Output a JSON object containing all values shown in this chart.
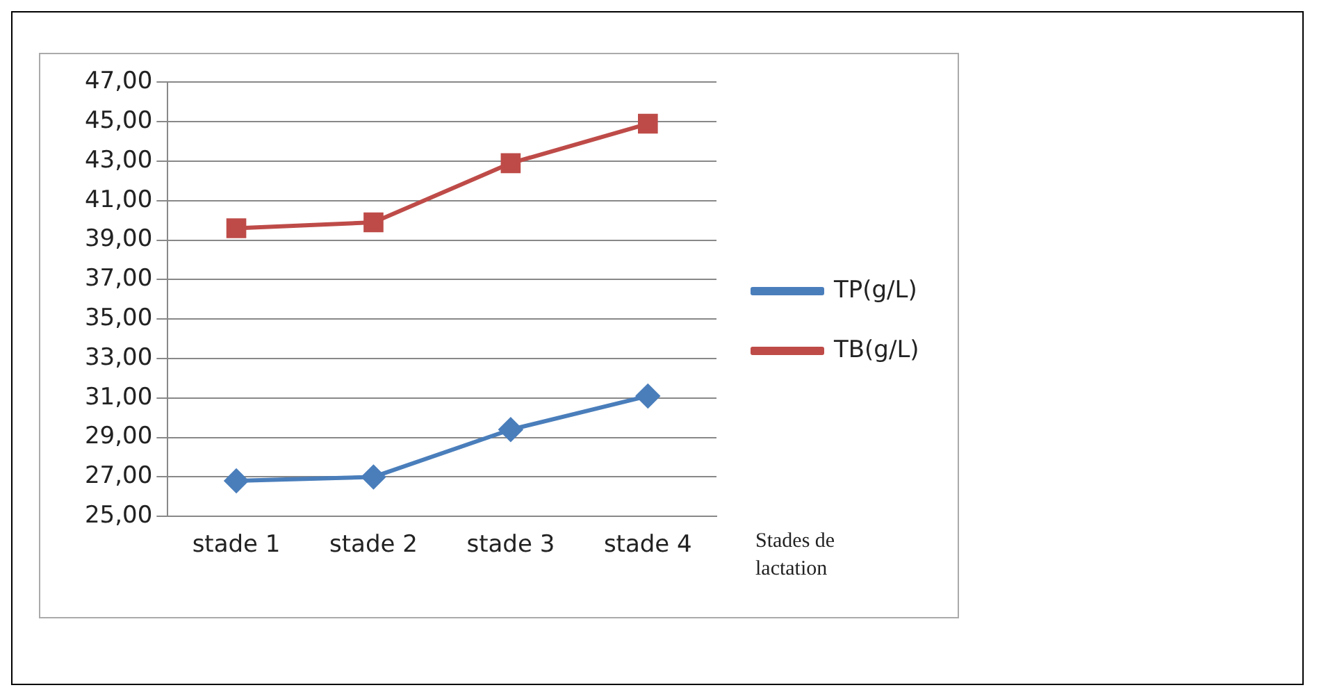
{
  "chart_data": {
    "type": "line",
    "categories": [
      "stade 1",
      "stade 2",
      "stade 3",
      "stade 4"
    ],
    "series": [
      {
        "name": "TP(g/L)",
        "color": "#4a7ebb",
        "values": [
          26.8,
          27.0,
          29.4,
          31.1
        ],
        "marker": "diamond"
      },
      {
        "name": "TB(g/L)",
        "color": "#be4b48",
        "values": [
          39.6,
          39.9,
          42.9,
          44.9
        ],
        "marker": "square"
      }
    ],
    "xlabel": "Stades de lactation",
    "ylim": [
      25,
      47
    ],
    "yticks": [
      {
        "value": 25,
        "label": "25,00"
      },
      {
        "value": 27,
        "label": "27,00"
      },
      {
        "value": 29,
        "label": "29,00"
      },
      {
        "value": 31,
        "label": "31,00"
      },
      {
        "value": 33,
        "label": "33,00"
      },
      {
        "value": 35,
        "label": "35,00"
      },
      {
        "value": 37,
        "label": "37,00"
      },
      {
        "value": 39,
        "label": "39,00"
      },
      {
        "value": 41,
        "label": "41,00"
      },
      {
        "value": 43,
        "label": "43,00"
      },
      {
        "value": 45,
        "label": "45,00"
      },
      {
        "value": 47,
        "label": "47,00"
      }
    ],
    "grid": "y",
    "legend": "right",
    "line_style": "solid"
  }
}
